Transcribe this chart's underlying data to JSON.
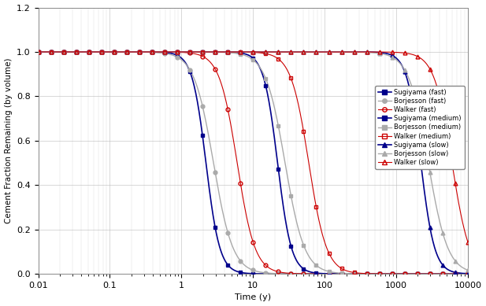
{
  "title": "",
  "xlabel": "Time (y)",
  "ylabel": "Cement Fraction Remaining (by volume)",
  "xlim": [
    0.01,
    10000
  ],
  "ylim": [
    0.0,
    1.2
  ],
  "yticks": [
    0.0,
    0.2,
    0.4,
    0.6,
    0.8,
    1.0,
    1.2
  ],
  "series": [
    {
      "label": "Sugiyama (fast)",
      "color": "#00008B",
      "marker": "s",
      "marker_face": "#00008B",
      "linestyle": "-",
      "linewidth": 1.2,
      "t50": 2.2,
      "k": 4.5
    },
    {
      "label": "Borjesson (fast)",
      "color": "#aaaaaa",
      "marker": "o",
      "marker_face": "#aaaaaa",
      "linestyle": "-",
      "linewidth": 1.0,
      "t50": 2.8,
      "k": 3.2
    },
    {
      "label": "Walker (fast)",
      "color": "#cc0000",
      "marker": "o",
      "marker_face": "none",
      "linestyle": "-",
      "linewidth": 0.8,
      "t50": 6.0,
      "k": 3.5
    },
    {
      "label": "Sugiyama (medium)",
      "color": "#00008B",
      "marker": "s",
      "marker_face": "#00008B",
      "linestyle": "-",
      "linewidth": 1.2,
      "t50": 22.0,
      "k": 4.5
    },
    {
      "label": "Borjesson (medium)",
      "color": "#aaaaaa",
      "marker": "s",
      "marker_face": "#aaaaaa",
      "linestyle": "-",
      "linewidth": 1.0,
      "t50": 28.0,
      "k": 3.2
    },
    {
      "label": "Walker (medium)",
      "color": "#cc0000",
      "marker": "s",
      "marker_face": "none",
      "linestyle": "-",
      "linewidth": 0.8,
      "t50": 60.0,
      "k": 3.5
    },
    {
      "label": "Sugiyama (slow)",
      "color": "#00008B",
      "marker": "^",
      "marker_face": "#00008B",
      "linestyle": "-",
      "linewidth": 1.2,
      "t50": 2200.0,
      "k": 4.5
    },
    {
      "label": "Borjesson (slow)",
      "color": "#aaaaaa",
      "marker": "^",
      "marker_face": "#aaaaaa",
      "linestyle": "-",
      "linewidth": 1.0,
      "t50": 2800.0,
      "k": 3.2
    },
    {
      "label": "Walker (slow)",
      "color": "#cc0000",
      "marker": "^",
      "marker_face": "none",
      "linestyle": "-",
      "linewidth": 0.8,
      "t50": 6000.0,
      "k": 3.5
    }
  ],
  "background_color": "#ffffff",
  "grid_color": "#bbbbbb"
}
